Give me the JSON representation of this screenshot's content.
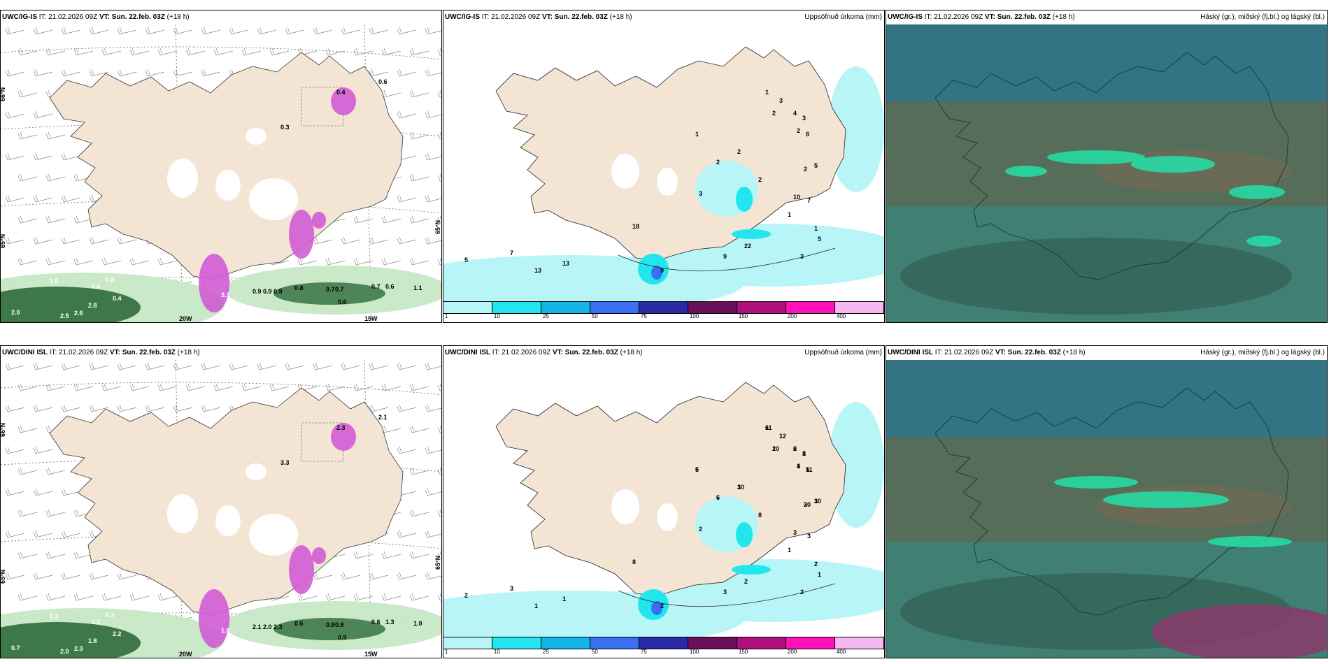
{
  "colors": {
    "land": "#f3e4d4",
    "sea_bg": "#ffffff",
    "precip_light": "#b8f5f7",
    "precip_cyan": "#21e6ee",
    "snow_pink": "#d25bd6",
    "green_dark": "#2f6b3a",
    "green_light": "#c6e8c6",
    "cloud_bg": "#3f7f74"
  },
  "panels": [
    {
      "id": "ig-wind",
      "model": "UWC/IG-IS",
      "it_label": "IT:",
      "it_value": "21.02.2026 09Z",
      "vt_label": "VT:",
      "vt_value": "Sun. 22.feb. 03Z",
      "lead": "(+18 h)",
      "title_right": "",
      "lat_labels": [
        "66°N",
        "65°N",
        "65°N"
      ],
      "lon_labels": [
        "20W",
        "15W"
      ],
      "values": [
        "1.0",
        "0.6",
        "0.8",
        "0.4",
        "2.8",
        "2.0",
        "2.5",
        "2.6",
        "3.1",
        "0.9",
        "0.9",
        "0.9",
        "0.8",
        "0.7",
        "0.7",
        "0.6",
        "0.7",
        "0.6",
        "1.1",
        "0.4",
        "0.3",
        "0.6"
      ]
    },
    {
      "id": "ig-precip",
      "model": "UWC/IG-IS",
      "it_label": "IT:",
      "it_value": "21.02.2026 09Z",
      "vt_label": "VT:",
      "vt_value": "Sun. 22.feb. 03Z",
      "lead": "(+18 h)",
      "title_right": "Uppsöfnuð úrkoma (mm)",
      "values": [
        "1",
        "3",
        "2",
        "4",
        "3",
        "2",
        "6",
        "1",
        "2",
        "5",
        "2",
        "2",
        "3",
        "7",
        "2",
        "10",
        "1",
        "1",
        "22",
        "5",
        "3",
        "9",
        "7",
        "5",
        "13",
        "13",
        "9",
        "18"
      ]
    },
    {
      "id": "ig-cloud",
      "model": "UWC/IG-IS",
      "it_label": "IT:",
      "it_value": "21.02.2026 09Z",
      "vt_label": "VT:",
      "vt_value": "Sun. 22.feb. 03Z",
      "lead": "(+18 h)",
      "title_right": "Háský (gr.), miðský (fj.bl.) og lágský (bl.)"
    },
    {
      "id": "dini-wind",
      "model": "UWC/DINI ISL",
      "it_label": "IT:",
      "it_value": "21.02.2026 09Z",
      "vt_label": "VT:",
      "vt_value": "Sun. 22.feb. 03Z",
      "lead": "(+18 h)",
      "title_right": "",
      "lat_labels": [
        "66°N",
        "65°N",
        "65°N"
      ],
      "lon_labels": [
        "20W",
        "15W"
      ],
      "values": [
        "0.3",
        "1.2",
        "0.3",
        "2.2",
        "1.8",
        "0.7",
        "2.0",
        "2.3",
        "1.8",
        "2.1",
        "2.0",
        "2.3",
        "0.6",
        "0.9",
        "0.8",
        "0.9",
        "0.6",
        "1.3",
        "1.0",
        "2.3",
        "3.3",
        "2.1"
      ]
    },
    {
      "id": "dini-precip",
      "model": "UWC/DINI ISL",
      "it_label": "IT:",
      "it_value": "21.02.2026 09Z",
      "vt_label": "VT:",
      "vt_value": "Sun. 22.feb. 03Z",
      "lead": "(+18 h)",
      "title_right": "Uppsöfnuð úrkoma (mm)",
      "values": [
        "6",
        "1",
        "2",
        "6",
        "8",
        "1",
        "5",
        "5",
        "3",
        "3",
        "2",
        "6",
        "2",
        "3",
        "8",
        "3",
        "1",
        "2",
        "2",
        "1",
        "2",
        "3",
        "3",
        "2",
        "1",
        "1",
        "2",
        "8",
        "11",
        "12",
        "10",
        "2",
        "1",
        "4",
        "11",
        "6",
        "10",
        "10",
        "30",
        "6"
      ]
    },
    {
      "id": "dini-cloud",
      "model": "UWC/DINI ISL",
      "it_label": "IT:",
      "it_value": "21.02.2026 09Z",
      "vt_label": "VT:",
      "vt_value": "Sun. 22.feb. 03Z",
      "lead": "(+18 h)",
      "title_right": "Háský (gr.), miðský (fj.bl.) og lágský (bl.)"
    }
  ],
  "precip_legend": {
    "ticks": [
      "1",
      "10",
      "25",
      "50",
      "75",
      "100",
      "150",
      "200",
      "400"
    ],
    "colors": [
      "#b8f5f7",
      "#21e6ee",
      "#12b5e3",
      "#3a6ff2",
      "#2a2aa6",
      "#6a0f5a",
      "#b0107f",
      "#ff10b8",
      "#f5b8f2"
    ]
  }
}
